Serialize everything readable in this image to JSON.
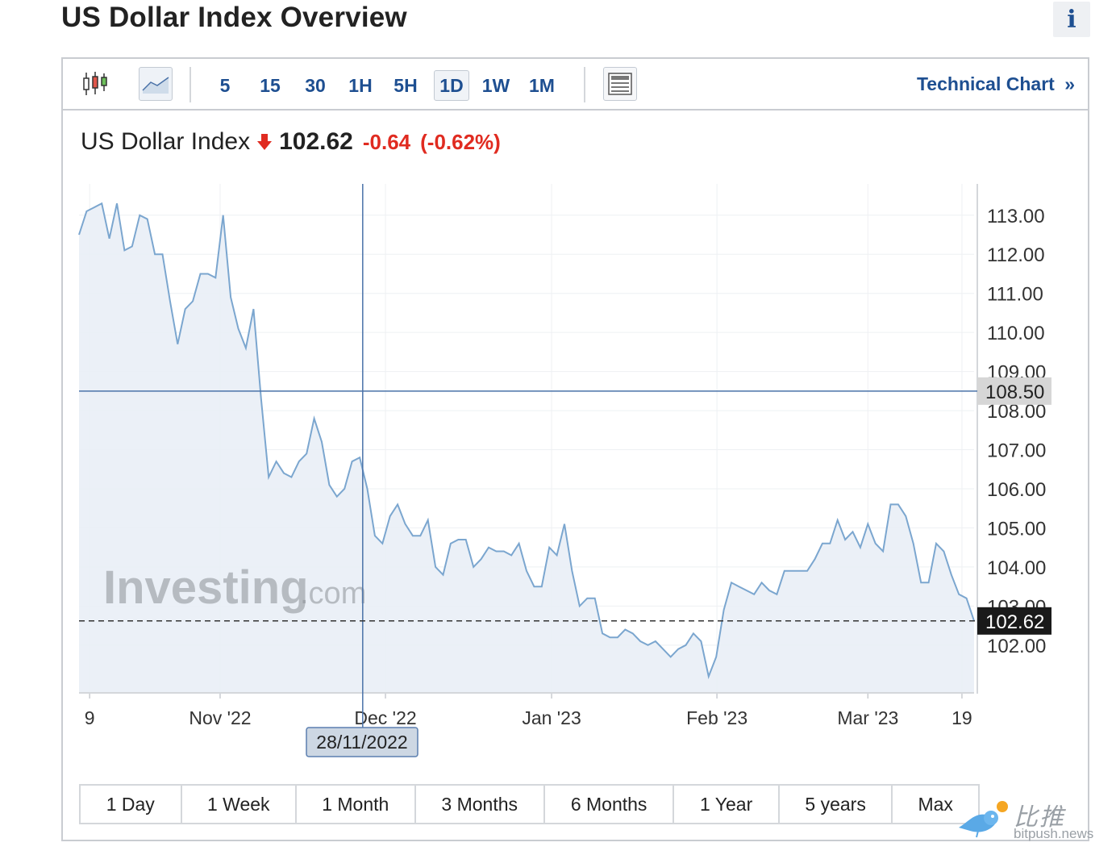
{
  "header": {
    "title": "US Dollar Index Overview",
    "info_label": "i"
  },
  "toolbar": {
    "timeframes": [
      "5",
      "15",
      "30",
      "1H",
      "5H",
      "1D",
      "1W",
      "1M"
    ],
    "active_timeframe": "1D",
    "technical_link": "Technical Chart",
    "technical_link_arrow": "»"
  },
  "quote": {
    "name": "US Dollar Index",
    "last": "102.62",
    "change": "-0.64",
    "change_pct": "(-0.62%)",
    "direction": "down"
  },
  "chart_data": {
    "type": "area",
    "y_ticks": [
      "113.00",
      "112.00",
      "111.00",
      "110.00",
      "109.00",
      "108.00",
      "107.00",
      "106.00",
      "105.00",
      "104.00",
      "103.00",
      "102.00"
    ],
    "x_ticks": [
      "9",
      "Nov '22",
      "Dec '22",
      "Jan '23",
      "Feb '23",
      "Mar '23",
      "19"
    ],
    "ylim": [
      100.8,
      113.8
    ],
    "values": [
      112.5,
      113.1,
      113.2,
      113.3,
      112.4,
      113.3,
      112.1,
      112.2,
      113.0,
      112.9,
      112.0,
      112.0,
      110.8,
      109.7,
      110.6,
      110.8,
      111.5,
      111.5,
      111.4,
      113.0,
      110.9,
      110.1,
      109.6,
      110.6,
      108.3,
      106.3,
      106.7,
      106.4,
      106.3,
      106.7,
      106.9,
      107.8,
      107.2,
      106.1,
      105.8,
      106.0,
      106.7,
      106.8,
      106.0,
      104.8,
      104.6,
      105.3,
      105.6,
      105.1,
      104.8,
      104.8,
      105.2,
      104.0,
      103.8,
      104.6,
      104.7,
      104.7,
      104.0,
      104.2,
      104.5,
      104.4,
      104.4,
      104.3,
      104.6,
      103.9,
      103.5,
      103.5,
      104.5,
      104.3,
      105.1,
      103.9,
      103.0,
      103.2,
      103.2,
      102.3,
      102.2,
      102.2,
      102.4,
      102.3,
      102.1,
      102.0,
      102.1,
      101.9,
      101.7,
      101.9,
      102.0,
      102.3,
      102.1,
      101.2,
      101.7,
      102.9,
      103.6,
      103.5,
      103.4,
      103.3,
      103.6,
      103.4,
      103.3,
      103.9,
      103.9,
      103.9,
      103.9,
      104.2,
      104.6,
      104.6,
      105.2,
      104.7,
      104.9,
      104.5,
      105.1,
      104.6,
      104.4,
      105.6,
      105.6,
      105.3,
      104.6,
      103.6,
      103.6,
      104.6,
      104.4,
      103.8,
      103.3,
      103.2,
      102.62
    ],
    "current_value": "102.62",
    "crosshair_value": "108.50",
    "crosshair_date": "28/11/2022",
    "watermark": "Investing",
    "watermark_suffix": ".com",
    "grid": true,
    "line_color": "#7ba6cf",
    "fill_color": "#e9eef6",
    "crosshair_color": "#4a72a8"
  },
  "ranges": [
    "1 Day",
    "1 Week",
    "1 Month",
    "3 Months",
    "6 Months",
    "1 Year",
    "5 years",
    "Max"
  ],
  "watermark": {
    "text": "比推",
    "url": "bitpush.news"
  }
}
